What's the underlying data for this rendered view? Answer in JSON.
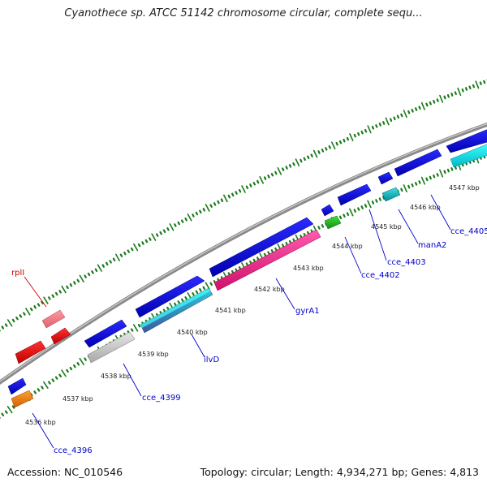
{
  "title": "Cyanothece sp. ATCC 51142 chromosome circular, complete sequ...",
  "footer": {
    "accession": "Accession: NC_010546",
    "summary": "Topology: circular; Length: 4,934,271 bp; Genes: 4,813"
  },
  "colors": {
    "backbone": "#8c8c8c",
    "tick": "#1a7a1a",
    "blue_gene": "#0a0ae6",
    "label_blue": "#0000cc",
    "label_red": "#cc0000"
  },
  "kbp_labels": [
    "4536 kbp",
    "4537 kbp",
    "4538 kbp",
    "4539 kbp",
    "4540 kbp",
    "4541 kbp",
    "4542 kbp",
    "4543 kbp",
    "4544 kbp",
    "4545 kbp",
    "4546 kbp",
    "4547 kbp"
  ],
  "gene_labels": {
    "rpll": "rplI",
    "cce_4396": "cce_4396",
    "cce_4399": "cce_4399",
    "ilvD": "ilvD",
    "gyrA1": "gyrA1",
    "cce_4402": "cce_4402",
    "cce_4403": "cce_4403",
    "manA2": "manA2",
    "cce_4405": "cce_4405"
  }
}
